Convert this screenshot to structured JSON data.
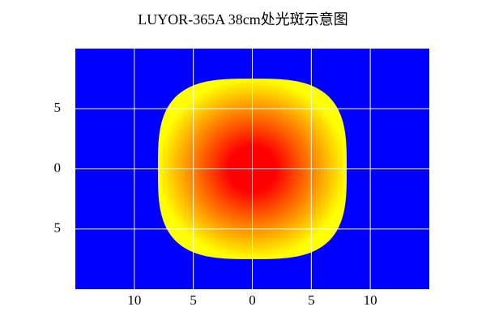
{
  "chart_data": {
    "type": "spot",
    "title": "LUYOR-365A 38cm处光斑示意图",
    "spot": {
      "center": [
        0,
        0
      ],
      "x_radius": 8,
      "y_radius": 7.5,
      "colors": [
        "#ff0000",
        "#ffff00"
      ]
    },
    "background": "#0000ff",
    "grid": true,
    "grid_color": "#ffffff",
    "xlim": [
      -15,
      15
    ],
    "ylim": [
      -10,
      10
    ],
    "xticks": [
      {
        "value": -10,
        "label": "10"
      },
      {
        "value": -5,
        "label": "5"
      },
      0,
      5,
      10
    ],
    "yticks": [
      {
        "value": -5,
        "label": "5"
      },
      0,
      5
    ]
  }
}
